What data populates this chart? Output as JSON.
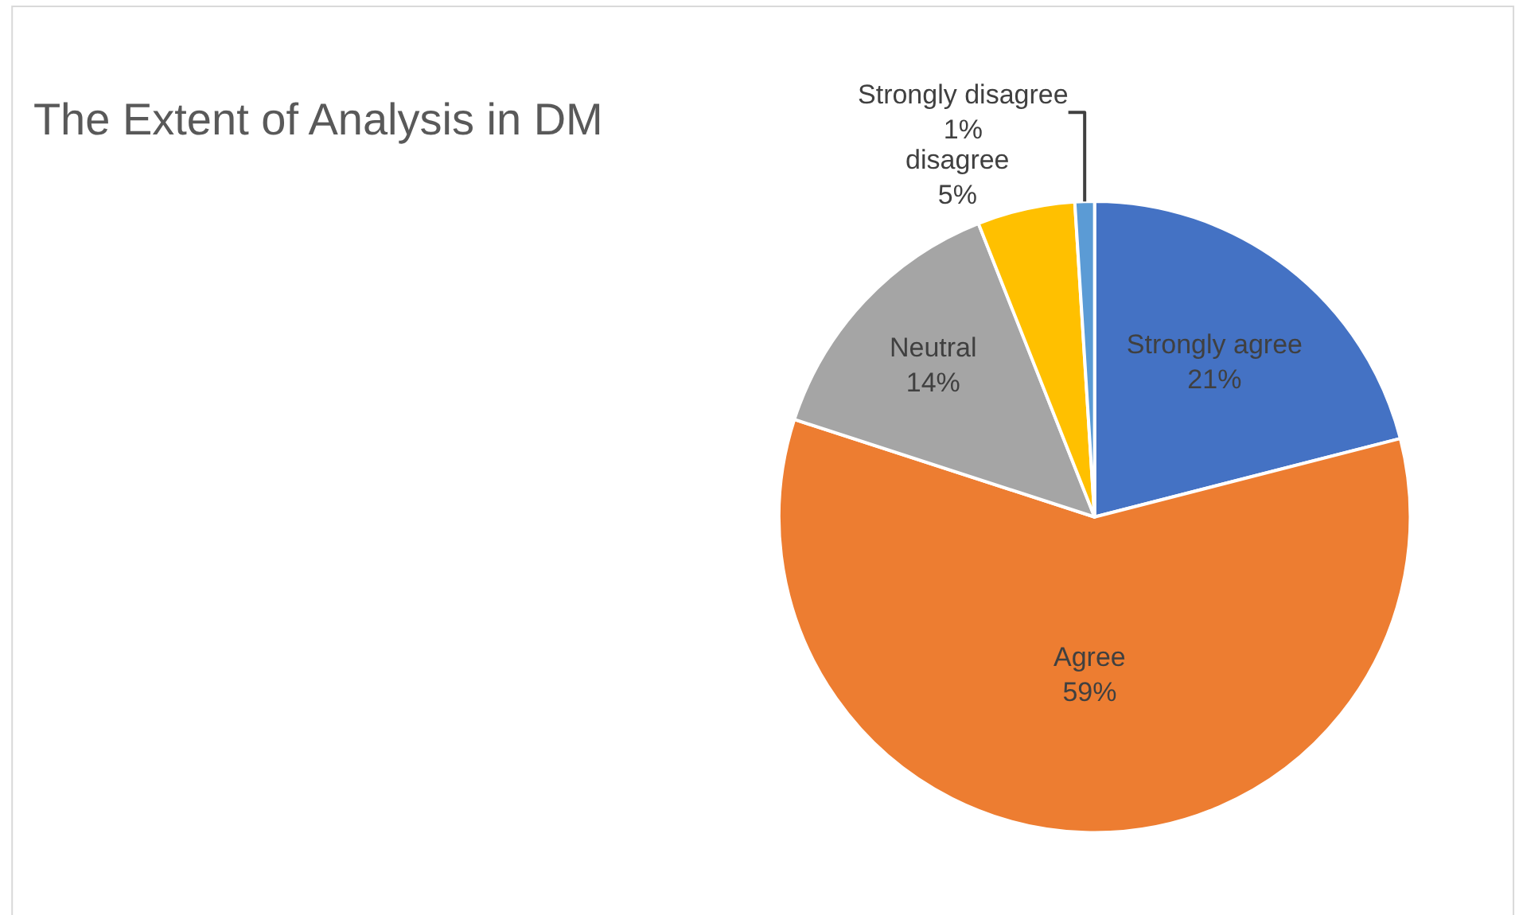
{
  "chart_data": {
    "type": "pie",
    "title": "The Extent of Analysis in DM",
    "categories": [
      "Strongly agree",
      "Agree",
      "Neutral",
      "disagree",
      "Strongly disagree"
    ],
    "values": [
      21,
      59,
      14,
      5,
      1
    ],
    "value_labels": [
      "21%",
      "59%",
      "14%",
      "5%",
      "1%"
    ],
    "colors": [
      "#4472c4",
      "#ed7d31",
      "#a5a5a5",
      "#ffc000",
      "#5b9bd5"
    ],
    "legend": false
  }
}
